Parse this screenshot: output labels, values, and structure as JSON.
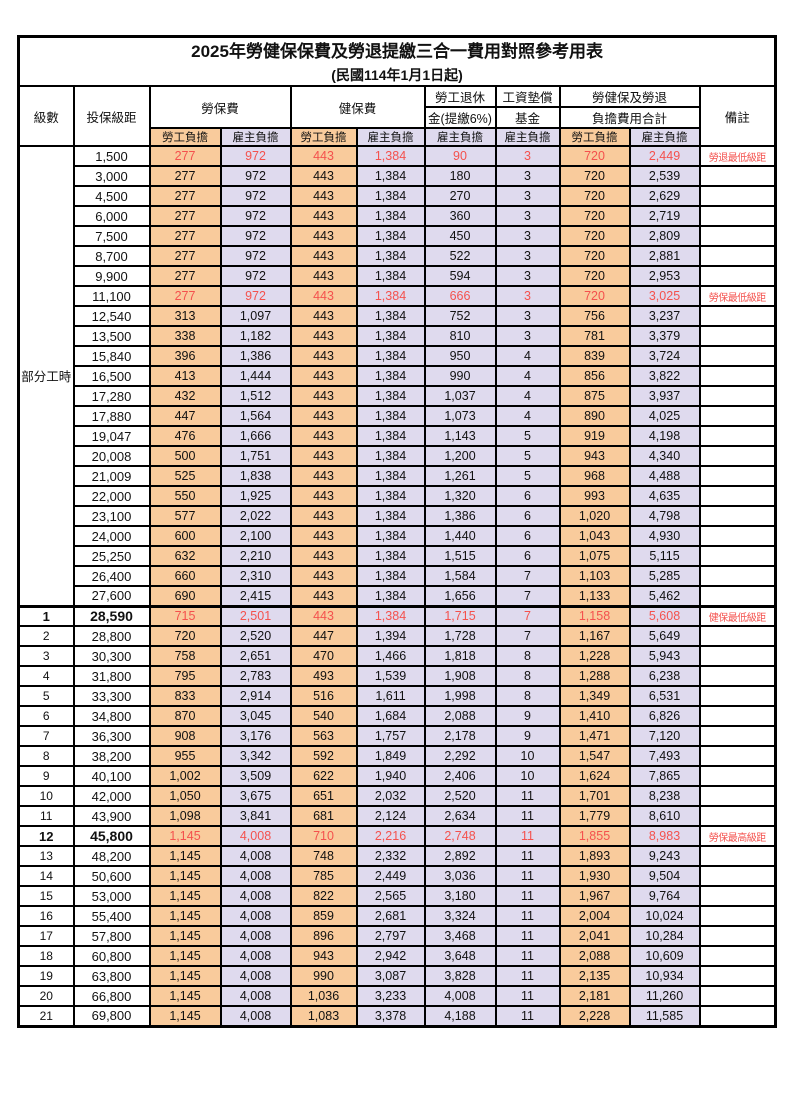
{
  "title": {
    "main": "2025年勞健保保費及勞退提繳三合一費用對照參考用表",
    "effective_date": "(民國114年1月1日起)"
  },
  "colors": {
    "employee_bg": "#F9CB9C",
    "employer_bg": "#DFDAEE",
    "highlight_text": "#F4514D",
    "border": "#000000"
  },
  "table": {
    "header": {
      "level": "級數",
      "bracket": "投保級距",
      "labor_insurance": "勞保費",
      "health_insurance": "健保費",
      "pension_line1": "勞工退休",
      "pension_line2": "金(提繳6%)",
      "wage_fund_line1": "工資墊償",
      "wage_fund_line2": "基金",
      "total_line1": "勞健保及勞退",
      "total_line2": "負擔費用合計",
      "note": "備註",
      "employee_label": "勞工負擔",
      "employer_label": "雇主負擔"
    },
    "part_time_label": "部分工時",
    "part_time_rowspan": 23,
    "rows": [
      {
        "level": "",
        "bracket": "1,500",
        "values": [
          "277",
          "972",
          "443",
          "1,384",
          "90",
          "3",
          "720",
          "2,449"
        ],
        "note": "勞退最低級距",
        "red": true
      },
      {
        "level": "",
        "bracket": "3,000",
        "values": [
          "277",
          "972",
          "443",
          "1,384",
          "180",
          "3",
          "720",
          "2,539"
        ],
        "note": ""
      },
      {
        "level": "",
        "bracket": "4,500",
        "values": [
          "277",
          "972",
          "443",
          "1,384",
          "270",
          "3",
          "720",
          "2,629"
        ],
        "note": ""
      },
      {
        "level": "",
        "bracket": "6,000",
        "values": [
          "277",
          "972",
          "443",
          "1,384",
          "360",
          "3",
          "720",
          "2,719"
        ],
        "note": ""
      },
      {
        "level": "",
        "bracket": "7,500",
        "values": [
          "277",
          "972",
          "443",
          "1,384",
          "450",
          "3",
          "720",
          "2,809"
        ],
        "note": ""
      },
      {
        "level": "",
        "bracket": "8,700",
        "values": [
          "277",
          "972",
          "443",
          "1,384",
          "522",
          "3",
          "720",
          "2,881"
        ],
        "note": ""
      },
      {
        "level": "",
        "bracket": "9,900",
        "values": [
          "277",
          "972",
          "443",
          "1,384",
          "594",
          "3",
          "720",
          "2,953"
        ],
        "note": ""
      },
      {
        "level": "",
        "bracket": "11,100",
        "values": [
          "277",
          "972",
          "443",
          "1,384",
          "666",
          "3",
          "720",
          "3,025"
        ],
        "note": "勞保最低級距",
        "red": true
      },
      {
        "level": "",
        "bracket": "12,540",
        "values": [
          "313",
          "1,097",
          "443",
          "1,384",
          "752",
          "3",
          "756",
          "3,237"
        ],
        "note": ""
      },
      {
        "level": "",
        "bracket": "13,500",
        "values": [
          "338",
          "1,182",
          "443",
          "1,384",
          "810",
          "3",
          "781",
          "3,379"
        ],
        "note": ""
      },
      {
        "level": "",
        "bracket": "15,840",
        "values": [
          "396",
          "1,386",
          "443",
          "1,384",
          "950",
          "4",
          "839",
          "3,724"
        ],
        "note": ""
      },
      {
        "level": "",
        "bracket": "16,500",
        "values": [
          "413",
          "1,444",
          "443",
          "1,384",
          "990",
          "4",
          "856",
          "3,822"
        ],
        "note": ""
      },
      {
        "level": "",
        "bracket": "17,280",
        "values": [
          "432",
          "1,512",
          "443",
          "1,384",
          "1,037",
          "4",
          "875",
          "3,937"
        ],
        "note": ""
      },
      {
        "level": "",
        "bracket": "17,880",
        "values": [
          "447",
          "1,564",
          "443",
          "1,384",
          "1,073",
          "4",
          "890",
          "4,025"
        ],
        "note": ""
      },
      {
        "level": "",
        "bracket": "19,047",
        "values": [
          "476",
          "1,666",
          "443",
          "1,384",
          "1,143",
          "5",
          "919",
          "4,198"
        ],
        "note": ""
      },
      {
        "level": "",
        "bracket": "20,008",
        "values": [
          "500",
          "1,751",
          "443",
          "1,384",
          "1,200",
          "5",
          "943",
          "4,340"
        ],
        "note": ""
      },
      {
        "level": "",
        "bracket": "21,009",
        "values": [
          "525",
          "1,838",
          "443",
          "1,384",
          "1,261",
          "5",
          "968",
          "4,488"
        ],
        "note": ""
      },
      {
        "level": "",
        "bracket": "22,000",
        "values": [
          "550",
          "1,925",
          "443",
          "1,384",
          "1,320",
          "6",
          "993",
          "4,635"
        ],
        "note": ""
      },
      {
        "level": "",
        "bracket": "23,100",
        "values": [
          "577",
          "2,022",
          "443",
          "1,384",
          "1,386",
          "6",
          "1,020",
          "4,798"
        ],
        "note": ""
      },
      {
        "level": "",
        "bracket": "24,000",
        "values": [
          "600",
          "2,100",
          "443",
          "1,384",
          "1,440",
          "6",
          "1,043",
          "4,930"
        ],
        "note": ""
      },
      {
        "level": "",
        "bracket": "25,250",
        "values": [
          "632",
          "2,210",
          "443",
          "1,384",
          "1,515",
          "6",
          "1,075",
          "5,115"
        ],
        "note": ""
      },
      {
        "level": "",
        "bracket": "26,400",
        "values": [
          "660",
          "2,310",
          "443",
          "1,384",
          "1,584",
          "7",
          "1,103",
          "5,285"
        ],
        "note": ""
      },
      {
        "level": "",
        "bracket": "27,600",
        "values": [
          "690",
          "2,415",
          "443",
          "1,384",
          "1,656",
          "7",
          "1,133",
          "5,462"
        ],
        "note": ""
      },
      {
        "level": "1",
        "bracket": "28,590",
        "values": [
          "715",
          "2,501",
          "443",
          "1,384",
          "1,715",
          "7",
          "1,158",
          "5,608"
        ],
        "note": "健保最低級距",
        "red": true,
        "emph": true,
        "thick_top": true
      },
      {
        "level": "2",
        "bracket": "28,800",
        "values": [
          "720",
          "2,520",
          "447",
          "1,394",
          "1,728",
          "7",
          "1,167",
          "5,649"
        ],
        "note": ""
      },
      {
        "level": "3",
        "bracket": "30,300",
        "values": [
          "758",
          "2,651",
          "470",
          "1,466",
          "1,818",
          "8",
          "1,228",
          "5,943"
        ],
        "note": ""
      },
      {
        "level": "4",
        "bracket": "31,800",
        "values": [
          "795",
          "2,783",
          "493",
          "1,539",
          "1,908",
          "8",
          "1,288",
          "6,238"
        ],
        "note": ""
      },
      {
        "level": "5",
        "bracket": "33,300",
        "values": [
          "833",
          "2,914",
          "516",
          "1,611",
          "1,998",
          "8",
          "1,349",
          "6,531"
        ],
        "note": ""
      },
      {
        "level": "6",
        "bracket": "34,800",
        "values": [
          "870",
          "3,045",
          "540",
          "1,684",
          "2,088",
          "9",
          "1,410",
          "6,826"
        ],
        "note": ""
      },
      {
        "level": "7",
        "bracket": "36,300",
        "values": [
          "908",
          "3,176",
          "563",
          "1,757",
          "2,178",
          "9",
          "1,471",
          "7,120"
        ],
        "note": ""
      },
      {
        "level": "8",
        "bracket": "38,200",
        "values": [
          "955",
          "3,342",
          "592",
          "1,849",
          "2,292",
          "10",
          "1,547",
          "7,493"
        ],
        "note": ""
      },
      {
        "level": "9",
        "bracket": "40,100",
        "values": [
          "1,002",
          "3,509",
          "622",
          "1,940",
          "2,406",
          "10",
          "1,624",
          "7,865"
        ],
        "note": ""
      },
      {
        "level": "10",
        "bracket": "42,000",
        "values": [
          "1,050",
          "3,675",
          "651",
          "2,032",
          "2,520",
          "11",
          "1,701",
          "8,238"
        ],
        "note": ""
      },
      {
        "level": "11",
        "bracket": "43,900",
        "values": [
          "1,098",
          "3,841",
          "681",
          "2,124",
          "2,634",
          "11",
          "1,779",
          "8,610"
        ],
        "note": ""
      },
      {
        "level": "12",
        "bracket": "45,800",
        "values": [
          "1,145",
          "4,008",
          "710",
          "2,216",
          "2,748",
          "11",
          "1,855",
          "8,983"
        ],
        "note": "勞保最高級距",
        "red": true,
        "emph": true
      },
      {
        "level": "13",
        "bracket": "48,200",
        "values": [
          "1,145",
          "4,008",
          "748",
          "2,332",
          "2,892",
          "11",
          "1,893",
          "9,243"
        ],
        "note": ""
      },
      {
        "level": "14",
        "bracket": "50,600",
        "values": [
          "1,145",
          "4,008",
          "785",
          "2,449",
          "3,036",
          "11",
          "1,930",
          "9,504"
        ],
        "note": ""
      },
      {
        "level": "15",
        "bracket": "53,000",
        "values": [
          "1,145",
          "4,008",
          "822",
          "2,565",
          "3,180",
          "11",
          "1,967",
          "9,764"
        ],
        "note": ""
      },
      {
        "level": "16",
        "bracket": "55,400",
        "values": [
          "1,145",
          "4,008",
          "859",
          "2,681",
          "3,324",
          "11",
          "2,004",
          "10,024"
        ],
        "note": ""
      },
      {
        "level": "17",
        "bracket": "57,800",
        "values": [
          "1,145",
          "4,008",
          "896",
          "2,797",
          "3,468",
          "11",
          "2,041",
          "10,284"
        ],
        "note": ""
      },
      {
        "level": "18",
        "bracket": "60,800",
        "values": [
          "1,145",
          "4,008",
          "943",
          "2,942",
          "3,648",
          "11",
          "2,088",
          "10,609"
        ],
        "note": ""
      },
      {
        "level": "19",
        "bracket": "63,800",
        "values": [
          "1,145",
          "4,008",
          "990",
          "3,087",
          "3,828",
          "11",
          "2,135",
          "10,934"
        ],
        "note": ""
      },
      {
        "level": "20",
        "bracket": "66,800",
        "values": [
          "1,145",
          "4,008",
          "1,036",
          "3,233",
          "4,008",
          "11",
          "2,181",
          "11,260"
        ],
        "note": ""
      },
      {
        "level": "21",
        "bracket": "69,800",
        "values": [
          "1,145",
          "4,008",
          "1,083",
          "3,378",
          "4,188",
          "11",
          "2,228",
          "11,585"
        ],
        "note": ""
      }
    ]
  }
}
